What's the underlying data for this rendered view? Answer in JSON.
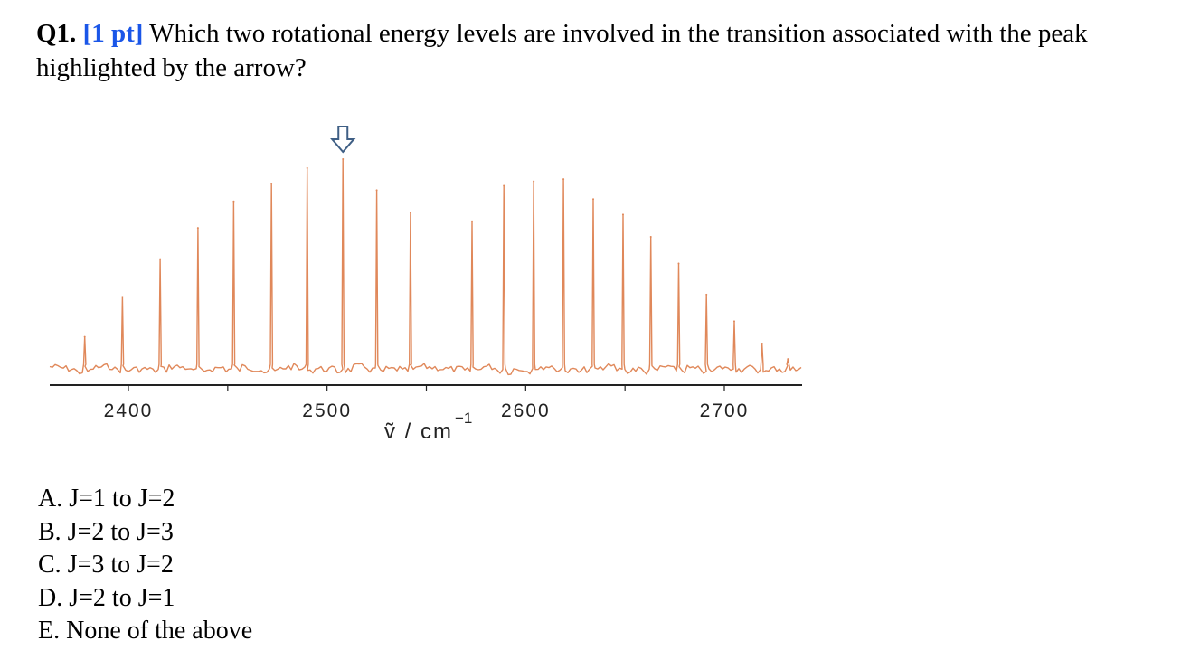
{
  "question": {
    "number": "Q1.",
    "points": "[1 pt]",
    "text": "Which two rotational energy levels are involved in the transition associated with the peak highlighted by the arrow?"
  },
  "options": [
    "A. J=1 to J=2",
    "B. J=2 to J=3",
    "C. J=3 to J=2",
    "D. J=2 to J=1",
    "E. None of the above"
  ],
  "chart_data": {
    "type": "line",
    "title": "",
    "xlabel": "ṽ / cm",
    "xlabel_superscript": "−1",
    "ylabel": "",
    "xlim": [
      2365,
      2745
    ],
    "ylim": [
      0,
      1
    ],
    "x_ticks": [
      2400,
      2500,
      2600,
      2700
    ],
    "x_tick_labels": [
      "2400",
      "2500",
      "2600",
      "2700"
    ],
    "grid": false,
    "line_color": "#e0885a",
    "arrow_color": "#3f5f85",
    "baseline_level": 0.06,
    "peaks": [
      {
        "x": 2378,
        "height": 0.2
      },
      {
        "x": 2397,
        "height": 0.38
      },
      {
        "x": 2416,
        "height": 0.55
      },
      {
        "x": 2435,
        "height": 0.69
      },
      {
        "x": 2453,
        "height": 0.81
      },
      {
        "x": 2472,
        "height": 0.89
      },
      {
        "x": 2490,
        "height": 0.96
      },
      {
        "x": 2508,
        "height": 1.0
      },
      {
        "x": 2525,
        "height": 0.86
      },
      {
        "x": 2542,
        "height": 0.76
      },
      {
        "x": 2573,
        "height": 0.72
      },
      {
        "x": 2589,
        "height": 0.88
      },
      {
        "x": 2604,
        "height": 0.9
      },
      {
        "x": 2619,
        "height": 0.91
      },
      {
        "x": 2634,
        "height": 0.82
      },
      {
        "x": 2649,
        "height": 0.75
      },
      {
        "x": 2663,
        "height": 0.65
      },
      {
        "x": 2677,
        "height": 0.53
      },
      {
        "x": 2691,
        "height": 0.39
      },
      {
        "x": 2705,
        "height": 0.27
      },
      {
        "x": 2719,
        "height": 0.17
      },
      {
        "x": 2732,
        "height": 0.1
      }
    ],
    "highlighted_peak_x": 2508
  }
}
